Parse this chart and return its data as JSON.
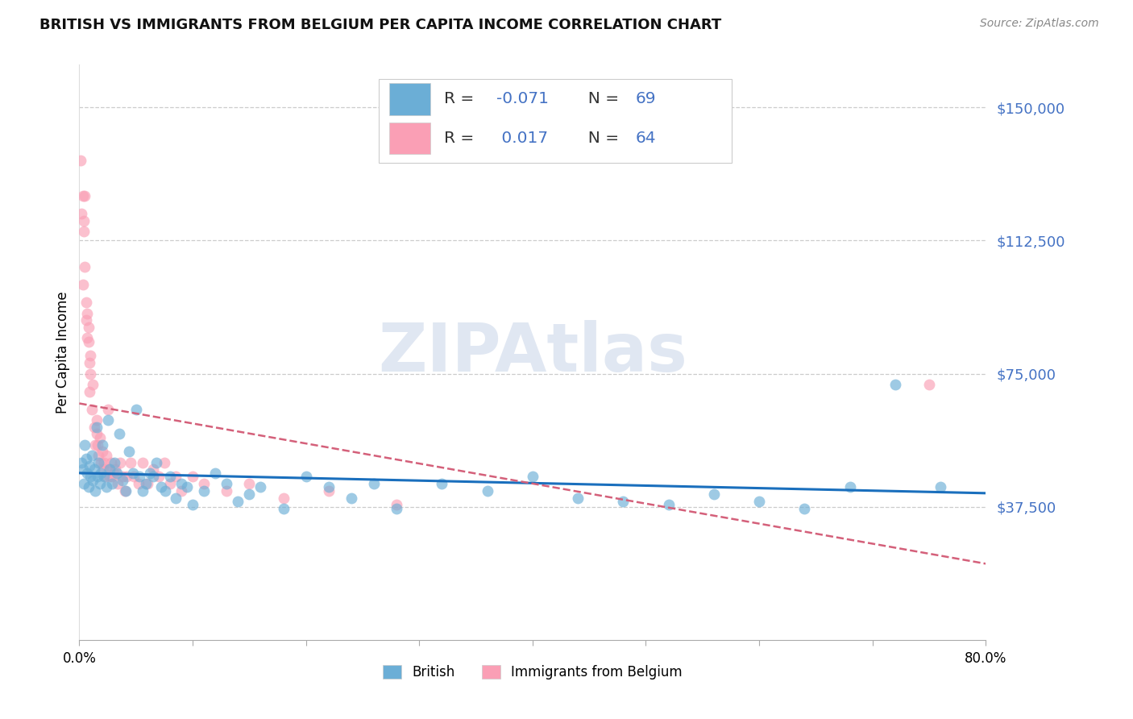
{
  "title": "BRITISH VS IMMIGRANTS FROM BELGIUM PER CAPITA INCOME CORRELATION CHART",
  "source": "Source: ZipAtlas.com",
  "ylabel": "Per Capita Income",
  "yticks": [
    0,
    37500,
    75000,
    112500,
    150000
  ],
  "ytick_labels": [
    "",
    "$37,500",
    "$75,000",
    "$112,500",
    "$150,000"
  ],
  "ylim": [
    0,
    162000
  ],
  "xlim": [
    0.0,
    0.8
  ],
  "british_color": "#6baed6",
  "belgium_color": "#fa9fb5",
  "british_line_color": "#1a6fbd",
  "belgium_line_color": "#d4607a",
  "r_british": -0.071,
  "n_british": 69,
  "r_belgium": 0.017,
  "n_belgium": 64,
  "british_x": [
    0.002,
    0.003,
    0.004,
    0.005,
    0.006,
    0.007,
    0.008,
    0.009,
    0.01,
    0.011,
    0.012,
    0.013,
    0.014,
    0.015,
    0.016,
    0.017,
    0.018,
    0.019,
    0.02,
    0.022,
    0.024,
    0.025,
    0.027,
    0.029,
    0.031,
    0.033,
    0.035,
    0.038,
    0.041,
    0.044,
    0.047,
    0.05,
    0.053,
    0.056,
    0.059,
    0.062,
    0.065,
    0.068,
    0.072,
    0.076,
    0.08,
    0.085,
    0.09,
    0.095,
    0.1,
    0.11,
    0.12,
    0.13,
    0.14,
    0.15,
    0.16,
    0.18,
    0.2,
    0.22,
    0.24,
    0.26,
    0.28,
    0.32,
    0.36,
    0.4,
    0.44,
    0.48,
    0.52,
    0.56,
    0.6,
    0.64,
    0.68,
    0.72,
    0.76
  ],
  "british_y": [
    50000,
    48000,
    44000,
    55000,
    51000,
    47000,
    43000,
    49000,
    46000,
    52000,
    45000,
    48000,
    42000,
    60000,
    46000,
    50000,
    44000,
    47000,
    55000,
    46000,
    43000,
    62000,
    48000,
    44000,
    50000,
    47000,
    58000,
    45000,
    42000,
    53000,
    47000,
    65000,
    46000,
    42000,
    44000,
    47000,
    46000,
    50000,
    43000,
    42000,
    46000,
    40000,
    44000,
    43000,
    38000,
    42000,
    47000,
    44000,
    39000,
    41000,
    43000,
    37000,
    46000,
    43000,
    40000,
    44000,
    37000,
    44000,
    42000,
    46000,
    40000,
    39000,
    38000,
    41000,
    39000,
    37000,
    43000,
    72000,
    43000
  ],
  "belgium_x": [
    0.001,
    0.002,
    0.003,
    0.003,
    0.004,
    0.004,
    0.005,
    0.005,
    0.006,
    0.006,
    0.007,
    0.007,
    0.008,
    0.008,
    0.009,
    0.009,
    0.01,
    0.01,
    0.011,
    0.012,
    0.013,
    0.014,
    0.015,
    0.015,
    0.016,
    0.017,
    0.018,
    0.019,
    0.02,
    0.021,
    0.022,
    0.023,
    0.024,
    0.025,
    0.026,
    0.027,
    0.028,
    0.029,
    0.03,
    0.032,
    0.034,
    0.036,
    0.038,
    0.04,
    0.042,
    0.045,
    0.048,
    0.052,
    0.056,
    0.06,
    0.065,
    0.07,
    0.075,
    0.08,
    0.085,
    0.09,
    0.1,
    0.11,
    0.13,
    0.15,
    0.18,
    0.22,
    0.28,
    0.75
  ],
  "belgium_y": [
    135000,
    120000,
    100000,
    125000,
    115000,
    118000,
    125000,
    105000,
    90000,
    95000,
    85000,
    92000,
    84000,
    88000,
    70000,
    78000,
    75000,
    80000,
    65000,
    72000,
    60000,
    55000,
    58000,
    62000,
    55000,
    52000,
    57000,
    50000,
    53000,
    48000,
    50000,
    46000,
    52000,
    65000,
    48000,
    46000,
    50000,
    46000,
    47000,
    48000,
    44000,
    50000,
    46000,
    42000,
    46000,
    50000,
    46000,
    44000,
    50000,
    44000,
    48000,
    46000,
    50000,
    44000,
    46000,
    42000,
    46000,
    44000,
    42000,
    44000,
    40000,
    42000,
    38000,
    72000
  ]
}
